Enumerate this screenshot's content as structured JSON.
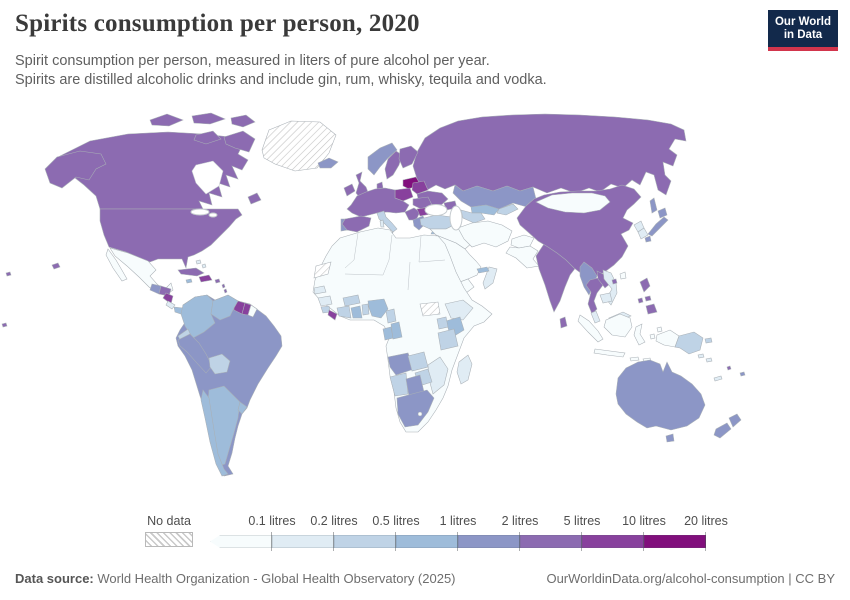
{
  "header": {
    "title": "Spirits consumption per person, 2020",
    "subtitle1": "Spirit consumption per person, measured in liters of pure alcohol per year.",
    "subtitle2": "Spirits are distilled alcoholic drinks and include gin, rum, whisky, tequila and vodka.",
    "logo": {
      "line1": "Our World",
      "line2": "in Data",
      "bg": "#12294b",
      "accent": "#d2354c"
    }
  },
  "legend": {
    "no_data_label": "No data",
    "ticks": [
      "0.1 litres",
      "0.2 litres",
      "0.5 litres",
      "1 litres",
      "2 litres",
      "5 litres",
      "10 litres",
      "20 litres"
    ],
    "bin_colors": [
      "#f7fcfd",
      "#e0ecf4",
      "#bfd3e6",
      "#9ebcda",
      "#8c96c6",
      "#8c6bb1",
      "#88419d",
      "#810f7c"
    ]
  },
  "footer": {
    "source_label": "Data source:",
    "source_text": " World Health Organization - Global Health Observatory (2025)",
    "credit": "OurWorldinData.org/alcohol-consumption | CC BY"
  },
  "chart_data": {
    "type": "heatmap",
    "subtype": "choropleth-world-map",
    "title": "Spirits consumption per person, 2020",
    "unit": "liters of pure alcohol per year",
    "legend_thresholds": [
      0.1,
      0.2,
      0.5,
      1,
      2,
      5,
      10,
      20
    ],
    "bin_labels": [
      "<0.1",
      "0.1-0.2",
      "0.2-0.5",
      "0.5-1",
      "1-2",
      "2-5",
      "5-10",
      "10-20"
    ],
    "legend_position": "bottom",
    "no_data_regions": [
      "Greenland",
      "Western Sahara",
      "South Sudan"
    ],
    "regions": {
      "russia": 5,
      "canada": 5,
      "arctic-islands": 5,
      "greenland": "nodata",
      "alaska": 5,
      "usa": 5,
      "hawaii": 5,
      "mexico": 0,
      "guatemala": 4,
      "honduras": 5,
      "nicaragua": 6,
      "costa-rica": 1,
      "panama": 3,
      "cuba": 5,
      "jamaica": 3,
      "hispaniola": 6,
      "puerto-rico": 5,
      "bahamas": 1,
      "lesser-antilles": 5,
      "south-america": 4,
      "colombia": 3,
      "venezuela": 3,
      "guyana": 6,
      "suriname": 6,
      "french-guiana": 0,
      "ecuador": 2,
      "peru": 4,
      "bolivia": 2,
      "chile": 3,
      "argentina": 3,
      "uruguay": 3,
      "iceland": 4,
      "ireland": 5,
      "uk": 5,
      "norway": 4,
      "sweden": 5,
      "finland": 5,
      "denmark": 5,
      "baltic-states": 7,
      "poland": 6,
      "belarus": 6,
      "ukraine": 5,
      "western-europe": 5,
      "spain": 5,
      "portugal": 4,
      "italy": 2,
      "sardinia": 1,
      "sicily": 2,
      "balkans": 5,
      "romania": 5,
      "bulgaria": 6,
      "greece": 4,
      "caucasus": 5,
      "turkey": 2,
      "cyprus": 3,
      "kazakhstan": 4,
      "uzbekistan": 3,
      "turkmenistan": 2,
      "kyrgyzstan": 2,
      "levant-iraq": 0,
      "saudi-arabia": 0,
      "yemen": 0,
      "oman": 1,
      "uae": 3,
      "iran": 0,
      "afghanistan": 0,
      "pakistan": 0,
      "africa": 0,
      "western-sahara": "nodata",
      "south-sudan": "nodata",
      "senegal": 1,
      "guinea": 1,
      "sierra-leone": 2,
      "liberia": 6,
      "ivory-coast": 2,
      "ghana": 3,
      "togo-benin": 2,
      "burkina-faso": 2,
      "nigeria": 3,
      "cameroon": 2,
      "gabon": 3,
      "congo": 3,
      "ethiopia": 1,
      "kenya": 3,
      "uganda": 2,
      "tanzania": 2,
      "angola": 4,
      "zambia": 2,
      "mozambique": 1,
      "zimbabwe": 2,
      "namibia": 2,
      "botswana": 4,
      "south-africa": 4,
      "madagascar": 1,
      "india": 5,
      "nepal": 2,
      "bhutan": 1,
      "bangladesh": 1,
      "sri-lanka": 5,
      "china": 5,
      "mongolia": 0,
      "taiwan": 0,
      "north-korea": 1,
      "south-korea": 1,
      "japan": 4,
      "sakhalin": 4,
      "myanmar": 4,
      "thailand": 5,
      "laos": 5,
      "vietnam": 1,
      "cambodia": 1,
      "hainan": 5,
      "malaysia": 1,
      "indonesia": 0,
      "papua-new-guinea": 2,
      "philippines": 5,
      "solomon-islands": 1,
      "australia": 4,
      "tasmania": 4,
      "new-zealand": 4,
      "new-caledonia": 1,
      "fiji": 4,
      "vanuatu": 5,
      "polynesia": 5
    }
  }
}
